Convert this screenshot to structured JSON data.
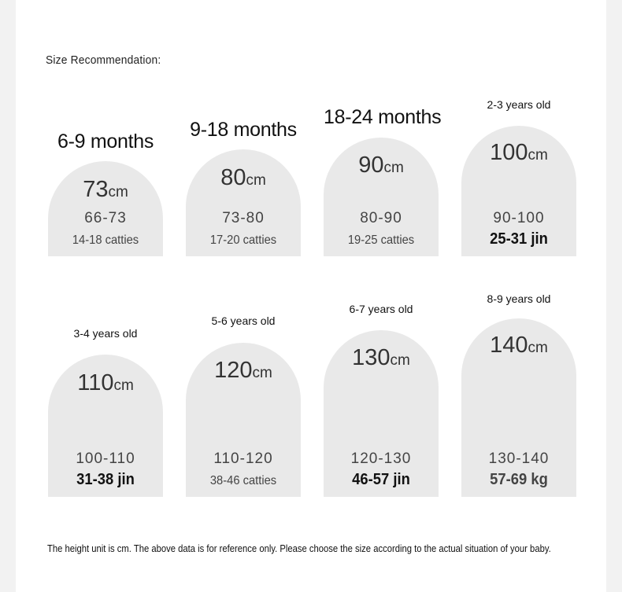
{
  "heading": "Size Recommendation:",
  "rows": [
    {
      "cells": [
        {
          "age": "6-9 months",
          "height": "73",
          "unit": "cm",
          "range": "66-73",
          "weight": "14-18 catties"
        },
        {
          "age": "9-18 months",
          "height": "80",
          "unit": "cm",
          "range": "73-80",
          "weight": "17-20 catties"
        },
        {
          "age": "18-24 months",
          "height": "90",
          "unit": "cm",
          "range": "80-90",
          "weight": "19-25 catties"
        },
        {
          "age": "2-3 years old",
          "height": "100",
          "unit": "cm",
          "range": "90-100",
          "weight": "25-31 jin"
        }
      ]
    },
    {
      "cells": [
        {
          "age": "3-4 years old",
          "height": "110",
          "unit": "cm",
          "range": "100-110",
          "weight": "31-38 jin"
        },
        {
          "age": "5-6 years old",
          "height": "120",
          "unit": "cm",
          "range": "110-120",
          "weight": "38-46 catties"
        },
        {
          "age": "6-7 years old",
          "height": "130",
          "unit": "cm",
          "range": "120-130",
          "weight": "46-57 jin"
        },
        {
          "age": "8-9 years old",
          "height": "140",
          "unit": "cm",
          "range": "130-140",
          "weight": "57-69 kg"
        }
      ]
    }
  ],
  "note": "The height unit is cm. The above data is for reference only. Please choose the size according to the actual situation of your baby."
}
